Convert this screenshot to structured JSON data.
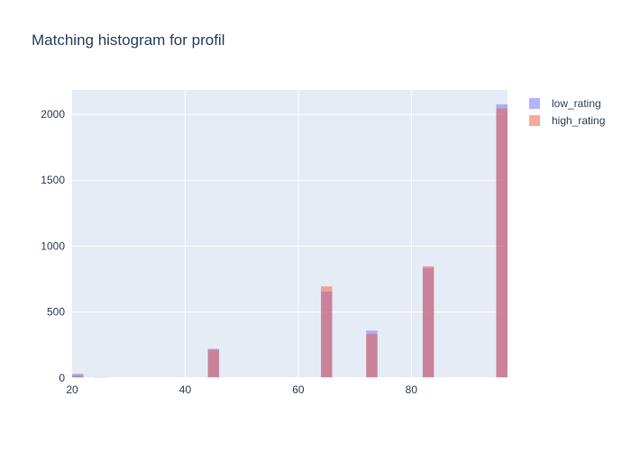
{
  "chart_data": {
    "type": "bar",
    "title": "Matching histogram for profil",
    "xlabel": "",
    "ylabel": "",
    "barmode": "overlay",
    "xlim": [
      20,
      97
    ],
    "ylim": [
      0,
      2184
    ],
    "x_ticks": [
      20,
      40,
      60,
      80
    ],
    "y_ticks": [
      0,
      500,
      1000,
      1500,
      2000
    ],
    "x_tick_labels": [
      "20",
      "40",
      "60",
      "80"
    ],
    "y_tick_labels": [
      "0",
      "500",
      "1000",
      "1500",
      "2000"
    ],
    "bin_width": 2,
    "grid": true,
    "legend_position": "top-right",
    "series": [
      {
        "name": "low_rating",
        "color": "#636efa",
        "bins": [
          {
            "x0": 20,
            "x1": 22,
            "value": 32
          },
          {
            "x0": 24,
            "x1": 26,
            "value": 8
          },
          {
            "x0": 44,
            "x1": 46,
            "value": 222
          },
          {
            "x0": 64,
            "x1": 66,
            "value": 655
          },
          {
            "x0": 72,
            "x1": 74,
            "value": 360
          },
          {
            "x0": 82,
            "x1": 84,
            "value": 835
          },
          {
            "x0": 95,
            "x1": 97,
            "value": 2075
          }
        ]
      },
      {
        "name": "high_rating",
        "color": "#ef553b",
        "bins": [
          {
            "x0": 20,
            "x1": 22,
            "value": 20
          },
          {
            "x0": 24,
            "x1": 26,
            "value": 6
          },
          {
            "x0": 44,
            "x1": 46,
            "value": 215
          },
          {
            "x0": 64,
            "x1": 66,
            "value": 695
          },
          {
            "x0": 72,
            "x1": 74,
            "value": 335
          },
          {
            "x0": 82,
            "x1": 84,
            "value": 848
          },
          {
            "x0": 95,
            "x1": 97,
            "value": 2045
          }
        ]
      }
    ]
  },
  "colors": {
    "plot_background": "#e5ecf6",
    "gridline": "#ffffff",
    "text": "#2a3f5f"
  }
}
